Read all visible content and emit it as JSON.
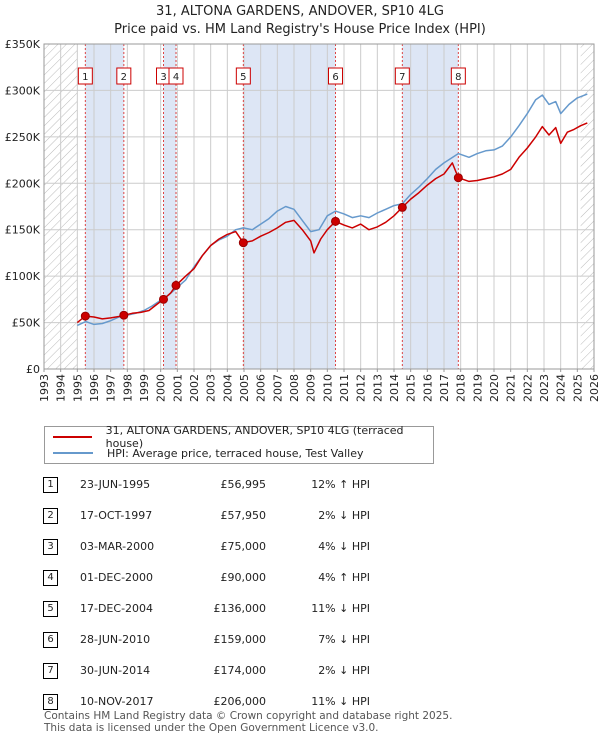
{
  "chart_data": {
    "type": "line",
    "title": "31, ALTONA GARDENS, ANDOVER, SP10 4LG",
    "subtitle": "Price paid vs. HM Land Registry's House Price Index (HPI)",
    "xlim": [
      1993,
      2026
    ],
    "ylim": [
      0,
      350000
    ],
    "y_ticks": [
      0,
      50000,
      100000,
      150000,
      200000,
      250000,
      300000,
      350000
    ],
    "y_tick_labels": [
      "£0",
      "£50K",
      "£100K",
      "£150K",
      "£200K",
      "£250K",
      "£300K",
      "£350K"
    ],
    "x_ticks": [
      1993,
      1994,
      1995,
      1996,
      1997,
      1998,
      1999,
      2000,
      2001,
      2002,
      2003,
      2004,
      2005,
      2006,
      2007,
      2008,
      2009,
      2010,
      2011,
      2012,
      2013,
      2014,
      2015,
      2016,
      2017,
      2018,
      2019,
      2020,
      2021,
      2022,
      2023,
      2024,
      2025,
      2026
    ],
    "x_tick_labels": [
      "1993",
      "1994",
      "1995",
      "1996",
      "1997",
      "1998",
      "1999",
      "2000",
      "2001",
      "2002",
      "2003",
      "2004",
      "2005",
      "2006",
      "2007",
      "2008",
      "2009",
      "2010",
      "2011",
      "2012",
      "2013",
      "2014",
      "2015",
      "2016",
      "2017",
      "2018",
      "2019",
      "2020",
      "2021",
      "2022",
      "2023",
      "2024",
      "2025",
      "2026"
    ],
    "hatched_before": 1995.0,
    "hatched_after": 2025.2,
    "shaded_bands": [
      [
        1995.48,
        1997.79
      ],
      [
        2000.17,
        2000.92
      ],
      [
        2004.96,
        2010.49
      ],
      [
        2014.5,
        2017.86
      ]
    ],
    "series": [
      {
        "name": "31, ALTONA GARDENS, ANDOVER, SP10 4LG (terraced house)",
        "color": "#cc0000",
        "points": [
          [
            1995.0,
            50000
          ],
          [
            1995.48,
            56995
          ],
          [
            1996.0,
            56000
          ],
          [
            1996.5,
            54000
          ],
          [
            1997.0,
            55000
          ],
          [
            1997.5,
            56500
          ],
          [
            1997.79,
            57950
          ],
          [
            1998.3,
            60000
          ],
          [
            1998.8,
            61000
          ],
          [
            1999.3,
            63000
          ],
          [
            1999.8,
            70000
          ],
          [
            2000.17,
            75000
          ],
          [
            2000.6,
            82000
          ],
          [
            2000.92,
            90000
          ],
          [
            2001.5,
            100000
          ],
          [
            2002.0,
            108000
          ],
          [
            2002.5,
            122000
          ],
          [
            2003.0,
            133000
          ],
          [
            2003.5,
            140000
          ],
          [
            2004.0,
            145000
          ],
          [
            2004.5,
            148000
          ],
          [
            2004.96,
            136000
          ],
          [
            2005.5,
            138000
          ],
          [
            2006.0,
            143000
          ],
          [
            2006.5,
            147000
          ],
          [
            2007.0,
            152000
          ],
          [
            2007.5,
            158000
          ],
          [
            2008.0,
            160000
          ],
          [
            2008.5,
            150000
          ],
          [
            2009.0,
            138000
          ],
          [
            2009.2,
            125000
          ],
          [
            2009.6,
            140000
          ],
          [
            2010.0,
            150000
          ],
          [
            2010.49,
            159000
          ],
          [
            2011.0,
            155000
          ],
          [
            2011.5,
            152000
          ],
          [
            2012.0,
            156000
          ],
          [
            2012.5,
            150000
          ],
          [
            2013.0,
            153000
          ],
          [
            2013.5,
            158000
          ],
          [
            2014.0,
            165000
          ],
          [
            2014.5,
            174000
          ],
          [
            2015.0,
            183000
          ],
          [
            2015.5,
            190000
          ],
          [
            2016.0,
            198000
          ],
          [
            2016.5,
            205000
          ],
          [
            2017.0,
            210000
          ],
          [
            2017.5,
            222000
          ],
          [
            2017.86,
            206000
          ],
          [
            2018.5,
            202000
          ],
          [
            2019.0,
            203000
          ],
          [
            2019.5,
            205000
          ],
          [
            2020.0,
            207000
          ],
          [
            2020.5,
            210000
          ],
          [
            2021.0,
            215000
          ],
          [
            2021.5,
            228000
          ],
          [
            2022.0,
            238000
          ],
          [
            2022.5,
            250000
          ],
          [
            2022.9,
            261000
          ],
          [
            2023.3,
            252000
          ],
          [
            2023.7,
            260000
          ],
          [
            2024.0,
            243000
          ],
          [
            2024.4,
            255000
          ],
          [
            2024.8,
            258000
          ],
          [
            2025.2,
            262000
          ],
          [
            2025.6,
            265000
          ]
        ]
      },
      {
        "name": "HPI: Average price, terraced house, Test Valley",
        "color": "#6699cc",
        "points": [
          [
            1995.0,
            47000
          ],
          [
            1995.5,
            51000
          ],
          [
            1996.0,
            48000
          ],
          [
            1996.5,
            49000
          ],
          [
            1997.0,
            52000
          ],
          [
            1997.5,
            56000
          ],
          [
            1998.0,
            58000
          ],
          [
            1998.5,
            60000
          ],
          [
            1999.0,
            63000
          ],
          [
            1999.5,
            68000
          ],
          [
            2000.0,
            74000
          ],
          [
            2000.5,
            80000
          ],
          [
            2001.0,
            88000
          ],
          [
            2001.5,
            96000
          ],
          [
            2002.0,
            110000
          ],
          [
            2002.5,
            122000
          ],
          [
            2003.0,
            133000
          ],
          [
            2003.5,
            139000
          ],
          [
            2004.0,
            143000
          ],
          [
            2004.5,
            150000
          ],
          [
            2004.96,
            152000
          ],
          [
            2005.5,
            150000
          ],
          [
            2006.0,
            156000
          ],
          [
            2006.5,
            162000
          ],
          [
            2007.0,
            170000
          ],
          [
            2007.5,
            175000
          ],
          [
            2008.0,
            172000
          ],
          [
            2008.5,
            160000
          ],
          [
            2009.0,
            148000
          ],
          [
            2009.5,
            150000
          ],
          [
            2010.0,
            165000
          ],
          [
            2010.49,
            170000
          ],
          [
            2011.0,
            167000
          ],
          [
            2011.5,
            163000
          ],
          [
            2012.0,
            165000
          ],
          [
            2012.5,
            163000
          ],
          [
            2013.0,
            168000
          ],
          [
            2013.5,
            172000
          ],
          [
            2014.0,
            176000
          ],
          [
            2014.5,
            178000
          ],
          [
            2015.0,
            188000
          ],
          [
            2015.5,
            196000
          ],
          [
            2016.0,
            205000
          ],
          [
            2016.5,
            215000
          ],
          [
            2017.0,
            222000
          ],
          [
            2017.86,
            232000
          ],
          [
            2018.5,
            228000
          ],
          [
            2019.0,
            232000
          ],
          [
            2019.5,
            235000
          ],
          [
            2020.0,
            236000
          ],
          [
            2020.5,
            240000
          ],
          [
            2021.0,
            250000
          ],
          [
            2021.5,
            262000
          ],
          [
            2022.0,
            275000
          ],
          [
            2022.5,
            290000
          ],
          [
            2022.9,
            295000
          ],
          [
            2023.3,
            285000
          ],
          [
            2023.7,
            288000
          ],
          [
            2024.0,
            275000
          ],
          [
            2024.5,
            285000
          ],
          [
            2025.0,
            292000
          ],
          [
            2025.6,
            296000
          ]
        ]
      }
    ],
    "sales_markers": [
      {
        "n": "1",
        "year": 1995.48,
        "price": 56995
      },
      {
        "n": "2",
        "year": 1997.79,
        "price": 57950
      },
      {
        "n": "3",
        "year": 2000.17,
        "price": 75000
      },
      {
        "n": "4",
        "year": 2000.92,
        "price": 90000
      },
      {
        "n": "5",
        "year": 2004.96,
        "price": 136000
      },
      {
        "n": "6",
        "year": 2010.49,
        "price": 159000
      },
      {
        "n": "7",
        "year": 2014.5,
        "price": 174000
      },
      {
        "n": "8",
        "year": 2017.86,
        "price": 206000
      }
    ]
  },
  "legend": {
    "property_label": "31, ALTONA GARDENS, ANDOVER, SP10 4LG (terraced house)",
    "hpi_label": "HPI: Average price, terraced house, Test Valley"
  },
  "sales": [
    {
      "n": "1",
      "date": "23-JUN-1995",
      "price": "£56,995",
      "hpi": "12% ↑ HPI"
    },
    {
      "n": "2",
      "date": "17-OCT-1997",
      "price": "£57,950",
      "hpi": "2% ↓ HPI"
    },
    {
      "n": "3",
      "date": "03-MAR-2000",
      "price": "£75,000",
      "hpi": "4% ↓ HPI"
    },
    {
      "n": "4",
      "date": "01-DEC-2000",
      "price": "£90,000",
      "hpi": "4% ↑ HPI"
    },
    {
      "n": "5",
      "date": "17-DEC-2004",
      "price": "£136,000",
      "hpi": "11% ↓ HPI"
    },
    {
      "n": "6",
      "date": "28-JUN-2010",
      "price": "£159,000",
      "hpi": "7% ↓ HPI"
    },
    {
      "n": "7",
      "date": "30-JUN-2014",
      "price": "£174,000",
      "hpi": "2% ↓ HPI"
    },
    {
      "n": "8",
      "date": "10-NOV-2017",
      "price": "£206,000",
      "hpi": "11% ↓ HPI"
    }
  ],
  "footer": {
    "line1": "Contains HM Land Registry data © Crown copyright and database right 2025.",
    "line2": "This data is licensed under the Open Government Licence v3.0."
  },
  "colors": {
    "property": "#cc0000",
    "hpi": "#6699cc",
    "band": "#dde6f5",
    "grid": "#cccccc"
  }
}
